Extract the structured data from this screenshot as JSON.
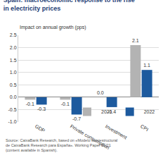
{
  "chart_data": {
    "type": "bar",
    "title": "Spain: macroeconomic response to the rise in electricity prices",
    "subtitle": "Impact on annual growth (pps)",
    "source": "Source: CaixaBank Research, based on «Modelo semiestructural de CaixaBank Research para España». Working Paper 01/21 (content available in Spanish).",
    "categories": [
      "GDP",
      "Private consumption",
      "Investment",
      "CPI"
    ],
    "series": [
      {
        "name": "2021",
        "color": "#b3b3b3",
        "values": [
          -0.1,
          -0.1,
          0.0,
          2.1
        ],
        "value_labels": [
          "-0.1",
          "-0.1",
          "0.0",
          "2.1"
        ]
      },
      {
        "name": "2022",
        "color": "#1d5a9e",
        "values": [
          -0.3,
          -0.7,
          -0.4,
          1.1
        ],
        "value_labels": [
          "-0.3",
          "-0.7",
          "-0.4",
          "1.1"
        ]
      }
    ],
    "ylim": [
      -1.0,
      2.5
    ],
    "yticks": [
      {
        "value": -1.0,
        "label": "-1.0"
      },
      {
        "value": -0.5,
        "label": "-0.5"
      },
      {
        "value": 0.0,
        "label": "0.0"
      },
      {
        "value": 0.5,
        "label": "0.5"
      },
      {
        "value": 1.0,
        "label": "1.0"
      },
      {
        "value": 1.5,
        "label": "1.5"
      },
      {
        "value": 2.0,
        "label": "2.0"
      },
      {
        "value": 2.5,
        "label": "2.5"
      }
    ],
    "grid": true,
    "data_labels": true,
    "legend": "bottom right"
  }
}
